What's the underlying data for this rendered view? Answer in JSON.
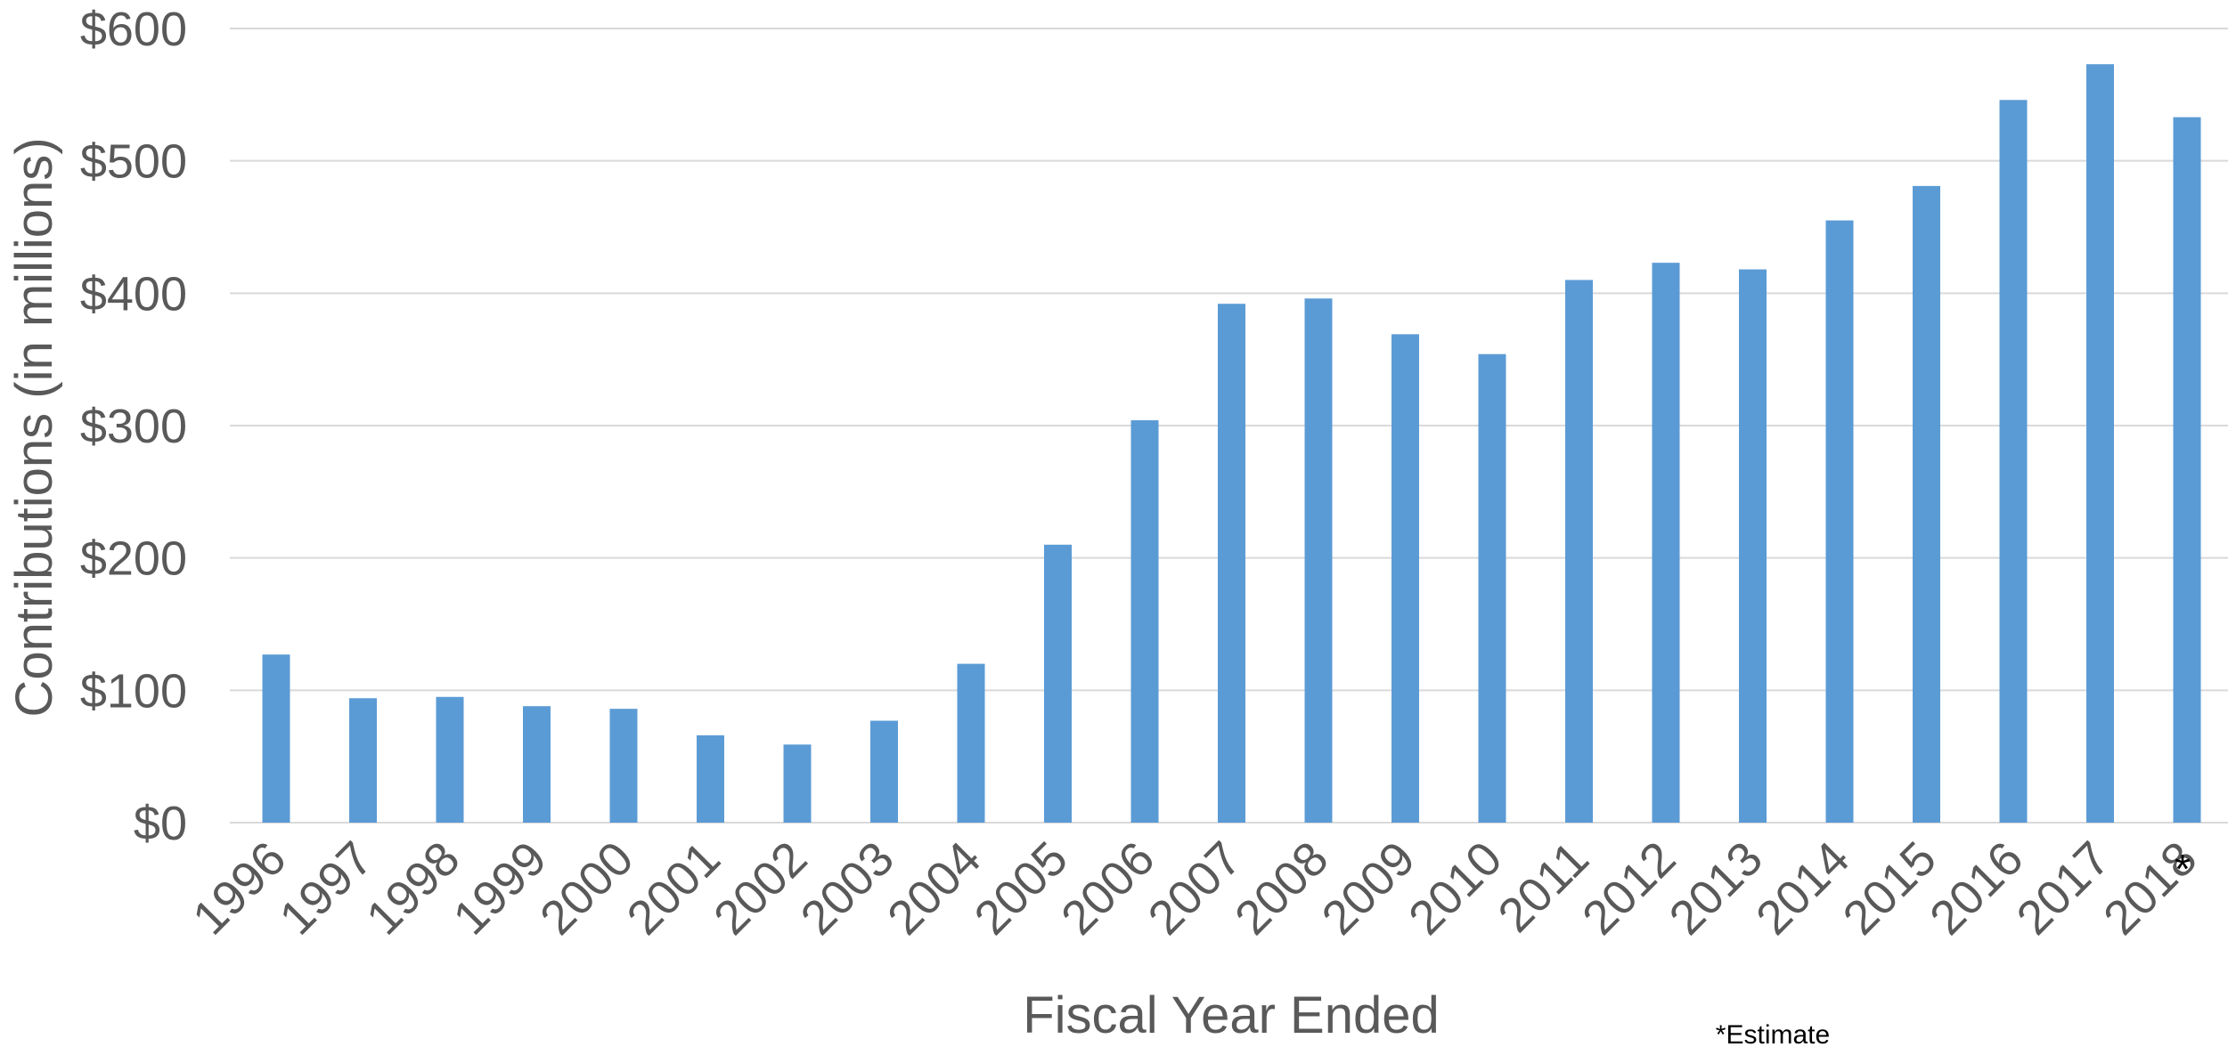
{
  "chart_data": {
    "type": "bar",
    "title": "",
    "xlabel": "Fiscal Year Ended",
    "ylabel": "Contributions (in millions)",
    "ylim": [
      0,
      600
    ],
    "y_ticks": [
      0,
      100,
      200,
      300,
      400,
      500,
      600
    ],
    "y_tick_labels": [
      "$0",
      "$100",
      "$200",
      "$300",
      "$400",
      "$500",
      "$600"
    ],
    "grid": true,
    "legend": "none",
    "bar_color": "#5b9bd5",
    "categories": [
      "1996",
      "1997",
      "1998",
      "1999",
      "2000",
      "2001",
      "2002",
      "2003",
      "2004",
      "2005",
      "2006",
      "2007",
      "2008",
      "2009",
      "2010",
      "2011",
      "2012",
      "2013",
      "2014",
      "2015",
      "2016",
      "2017",
      "2018"
    ],
    "values": [
      127,
      94,
      95,
      88,
      86,
      66,
      59,
      77,
      120,
      210,
      304,
      392,
      396,
      369,
      354,
      410,
      423,
      418,
      455,
      481,
      546,
      573,
      533
    ],
    "estimate_marker": "*",
    "estimate_category": "2018",
    "footnote": "*Estimate"
  }
}
